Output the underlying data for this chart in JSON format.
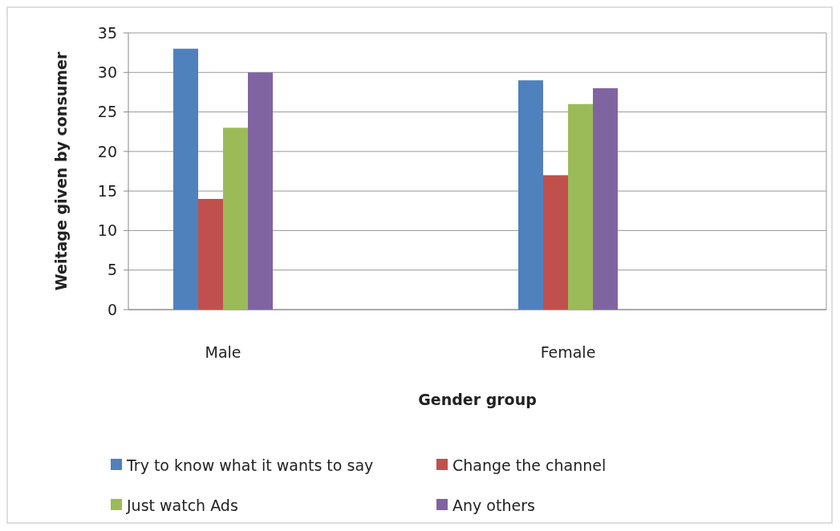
{
  "chart_data": {
    "type": "bar",
    "xlabel": "Gender group",
    "ylabel": "Weitage given by consumer",
    "categories": [
      "Male",
      "Female"
    ],
    "series": [
      {
        "name": "Try to know what it wants to say",
        "color": "#4f81bd",
        "values": [
          33,
          29
        ]
      },
      {
        "name": "Change the channel",
        "color": "#c0504d",
        "values": [
          14,
          17
        ]
      },
      {
        "name": "Just watch Ads",
        "color": "#9bbb59",
        "values": [
          23,
          26
        ]
      },
      {
        "name": "Any others",
        "color": "#8064a2",
        "values": [
          30,
          28
        ]
      }
    ],
    "ylim": [
      0,
      35
    ],
    "yticks": [
      0,
      5,
      10,
      15,
      20,
      25,
      30,
      35
    ],
    "grid": "y",
    "legend": "bottom"
  }
}
